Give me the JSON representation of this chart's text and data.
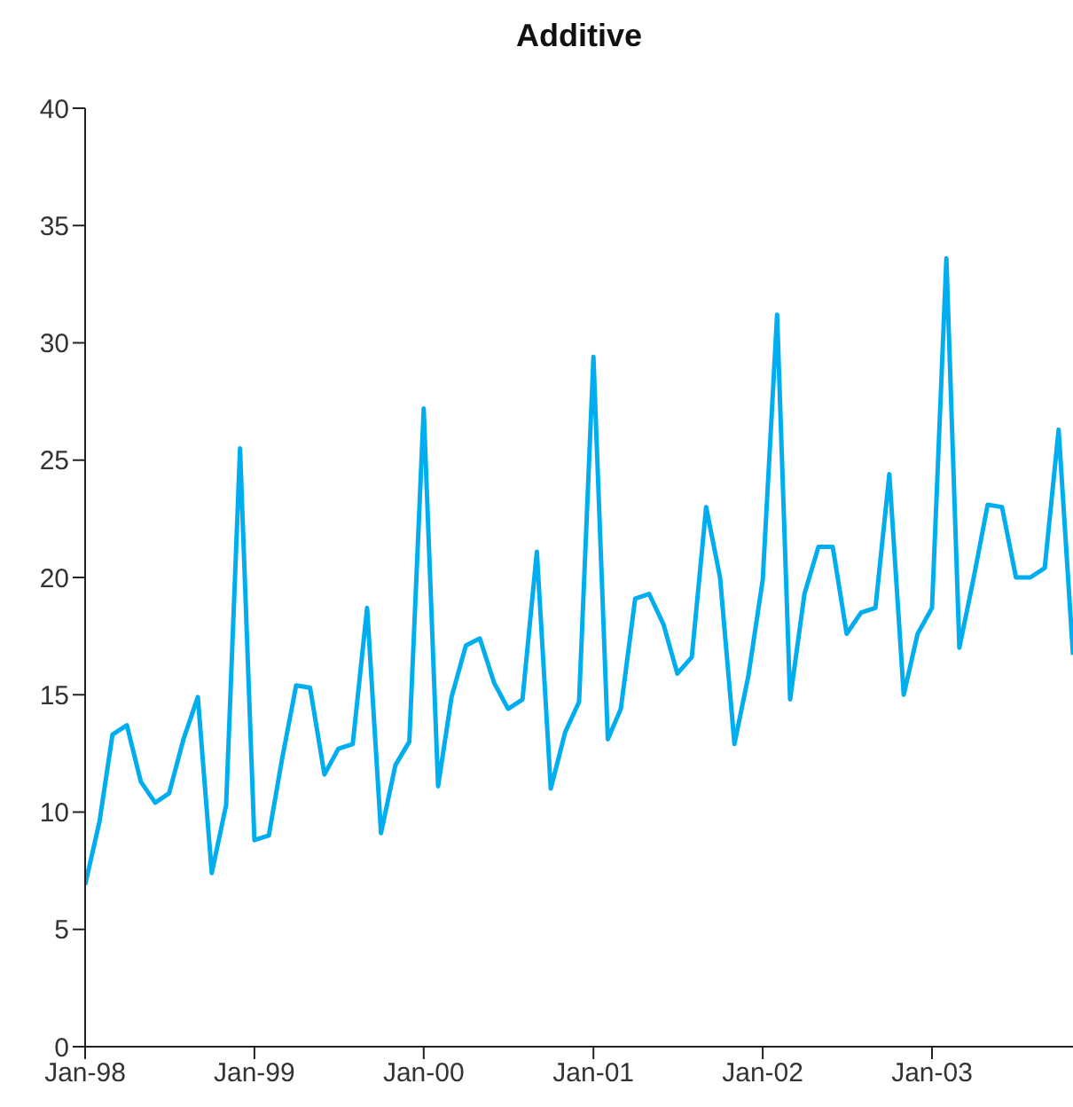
{
  "chart_data": {
    "type": "line",
    "title": "Additive",
    "x": [
      "1998-01",
      "1998-02",
      "1998-03",
      "1998-04",
      "1998-05",
      "1998-06",
      "1998-07",
      "1998-08",
      "1998-09",
      "1998-10",
      "1998-11",
      "1998-12",
      "1999-01",
      "1999-02",
      "1999-03",
      "1999-04",
      "1999-05",
      "1999-06",
      "1999-07",
      "1999-08",
      "1999-09",
      "1999-10",
      "1999-11",
      "1999-12",
      "2000-01",
      "2000-02",
      "2000-03",
      "2000-04",
      "2000-05",
      "2000-06",
      "2000-07",
      "2000-08",
      "2000-09",
      "2000-10",
      "2000-11",
      "2000-12",
      "2001-01",
      "2001-02",
      "2001-03",
      "2001-04",
      "2001-05",
      "2001-06",
      "2001-07",
      "2001-08",
      "2001-09",
      "2001-10",
      "2001-11",
      "2001-12",
      "2002-01",
      "2002-02",
      "2002-03",
      "2002-04",
      "2002-05",
      "2002-06",
      "2002-07",
      "2002-08",
      "2002-09",
      "2002-10",
      "2002-11",
      "2002-12",
      "2003-01",
      "2003-02",
      "2003-03",
      "2003-04",
      "2003-05",
      "2003-06",
      "2003-07",
      "2003-08",
      "2003-09",
      "2003-10",
      "2003-11"
    ],
    "series": [
      {
        "color": "#00aeef",
        "values": [
          6.9,
          9.6,
          13.3,
          13.7,
          11.3,
          10.4,
          10.8,
          13.1,
          14.9,
          7.4,
          10.3,
          25.5,
          8.8,
          9.0,
          12.2,
          15.4,
          15.3,
          11.6,
          12.7,
          12.9,
          18.7,
          9.1,
          12.0,
          13.0,
          27.2,
          11.1,
          14.9,
          17.1,
          17.4,
          15.5,
          14.4,
          14.8,
          21.1,
          11.0,
          13.4,
          14.7,
          29.4,
          13.1,
          14.4,
          19.1,
          19.3,
          18.0,
          15.9,
          16.6,
          23.0,
          20.0,
          12.9,
          15.8,
          19.9,
          31.2,
          14.8,
          19.3,
          21.3,
          21.3,
          17.6,
          18.5,
          18.7,
          24.4,
          15.0,
          17.6,
          18.7,
          33.6,
          17.0,
          20.0,
          23.1,
          23.0,
          20.0,
          20.0,
          20.4,
          26.3,
          16.7
        ]
      }
    ],
    "xlim": [
      "1998-01",
      "2003-11"
    ],
    "xticks": [
      {
        "value": "1998-01",
        "label": "Jan-98"
      },
      {
        "value": "1999-01",
        "label": "Jan-99"
      },
      {
        "value": "2000-01",
        "label": "Jan-00"
      },
      {
        "value": "2001-01",
        "label": "Jan-01"
      },
      {
        "value": "2002-01",
        "label": "Jan-02"
      },
      {
        "value": "2003-01",
        "label": "Jan-03"
      }
    ],
    "ylim": [
      0,
      40
    ],
    "yticks": [
      0,
      5,
      10,
      15,
      20,
      25,
      30,
      35,
      40
    ],
    "marker": "none",
    "line_style": "solid"
  }
}
